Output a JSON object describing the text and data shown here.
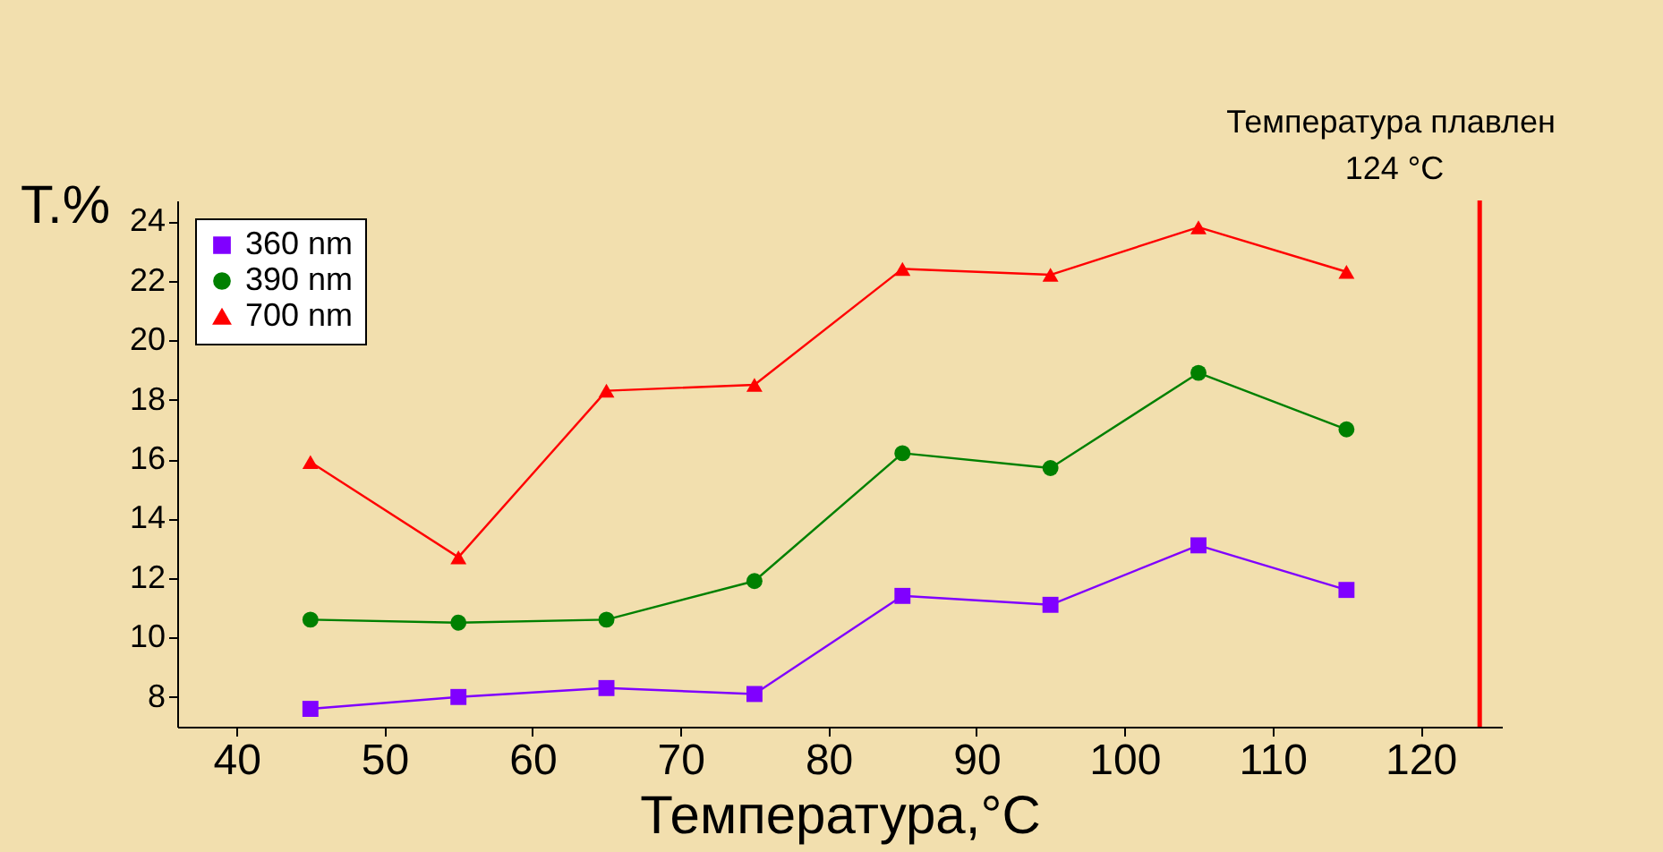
{
  "chart_data": {
    "type": "line",
    "xlabel": "Температура,°C",
    "ylabel": "T.%",
    "x": [
      45,
      55,
      65,
      75,
      85,
      95,
      105,
      115
    ],
    "series": [
      {
        "name": "360 nm",
        "color": "#8000ff",
        "marker": "square",
        "values": [
          7.6,
          8.0,
          8.3,
          8.1,
          11.4,
          11.1,
          13.1,
          11.6
        ]
      },
      {
        "name": "390 nm",
        "color": "#008000",
        "marker": "circle",
        "values": [
          10.6,
          10.5,
          10.6,
          11.9,
          16.2,
          15.7,
          18.9,
          17.0
        ]
      },
      {
        "name": "700 nm",
        "color": "#ff0000",
        "marker": "triangle",
        "values": [
          15.9,
          12.7,
          18.3,
          18.5,
          22.4,
          22.2,
          23.8,
          22.3
        ]
      }
    ],
    "xlim": [
      36,
      125.5
    ],
    "xticks": [
      40,
      50,
      60,
      70,
      80,
      90,
      100,
      110,
      120
    ],
    "ylim": [
      7,
      24.7
    ],
    "yticks": [
      8,
      10,
      12,
      14,
      16,
      18,
      20,
      22,
      24
    ],
    "ref_lines": [
      {
        "axis": "x",
        "value": 124,
        "label": "124 °C",
        "color": "#ff0000"
      }
    ],
    "annotations": [
      "Температура плавлен"
    ],
    "grid": false,
    "legend": "top left",
    "line_style": "solid"
  }
}
